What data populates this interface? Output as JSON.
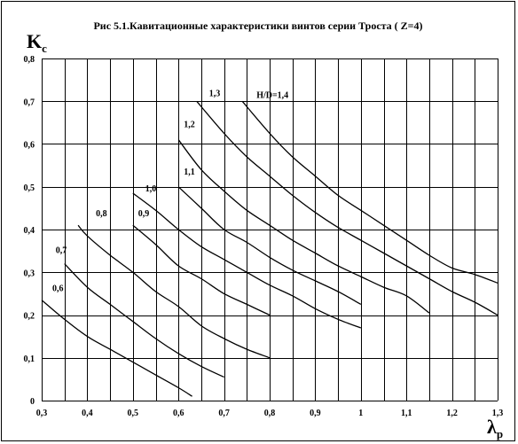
{
  "chart_data": {
    "type": "line",
    "title": "Рис 5.1.Кавитационные характеристики винтов серии Троста ( Z=4)",
    "ylabel": {
      "main": "K",
      "sub": "c"
    },
    "xlabel": {
      "main": "λ",
      "sub": "p"
    },
    "xlim": [
      0.3,
      1.3
    ],
    "ylim": [
      0,
      0.8
    ],
    "xticks": [
      "0,3",
      "0,4",
      "0,5",
      "0,6",
      "0,7",
      "0,8",
      "0,9",
      "1",
      "1,1",
      "1,2",
      "1,3"
    ],
    "yticks": [
      "0",
      "0,1",
      "0,2",
      "0,3",
      "0,4",
      "0,5",
      "0,6",
      "0,7",
      "0,8"
    ],
    "grid": true,
    "series": [
      {
        "name": "0,6",
        "points": [
          [
            0.3,
            0.235
          ],
          [
            0.35,
            0.19
          ],
          [
            0.4,
            0.15
          ],
          [
            0.45,
            0.12
          ],
          [
            0.5,
            0.09
          ],
          [
            0.55,
            0.06
          ],
          [
            0.6,
            0.03
          ],
          [
            0.63,
            0.01
          ]
        ]
      },
      {
        "name": "0,7",
        "points": [
          [
            0.35,
            0.32
          ],
          [
            0.4,
            0.265
          ],
          [
            0.45,
            0.225
          ],
          [
            0.5,
            0.185
          ],
          [
            0.55,
            0.145
          ],
          [
            0.6,
            0.11
          ],
          [
            0.65,
            0.08
          ],
          [
            0.7,
            0.055
          ]
        ]
      },
      {
        "name": "0,8",
        "points": [
          [
            0.38,
            0.41
          ],
          [
            0.4,
            0.385
          ],
          [
            0.45,
            0.34
          ],
          [
            0.5,
            0.3
          ],
          [
            0.55,
            0.255
          ],
          [
            0.6,
            0.22
          ],
          [
            0.65,
            0.175
          ],
          [
            0.7,
            0.145
          ],
          [
            0.75,
            0.12
          ],
          [
            0.8,
            0.1
          ]
        ]
      },
      {
        "name": "0,9",
        "points": [
          [
            0.5,
            0.41
          ],
          [
            0.55,
            0.365
          ],
          [
            0.6,
            0.315
          ],
          [
            0.65,
            0.285
          ],
          [
            0.7,
            0.25
          ],
          [
            0.75,
            0.225
          ],
          [
            0.8,
            0.2
          ]
        ]
      },
      {
        "name": "1,0",
        "points": [
          [
            0.5,
            0.485
          ],
          [
            0.55,
            0.445
          ],
          [
            0.6,
            0.4
          ],
          [
            0.65,
            0.36
          ],
          [
            0.7,
            0.33
          ],
          [
            0.75,
            0.3
          ],
          [
            0.8,
            0.27
          ],
          [
            0.85,
            0.245
          ],
          [
            0.9,
            0.215
          ],
          [
            0.95,
            0.19
          ],
          [
            1.0,
            0.17
          ]
        ]
      },
      {
        "name": "1,1",
        "points": [
          [
            0.6,
            0.5
          ],
          [
            0.65,
            0.45
          ],
          [
            0.7,
            0.4
          ],
          [
            0.75,
            0.37
          ],
          [
            0.8,
            0.335
          ],
          [
            0.85,
            0.305
          ],
          [
            0.9,
            0.28
          ],
          [
            0.95,
            0.255
          ],
          [
            1.0,
            0.225
          ]
        ]
      },
      {
        "name": "1,2",
        "points": [
          [
            0.6,
            0.61
          ],
          [
            0.65,
            0.54
          ],
          [
            0.7,
            0.49
          ],
          [
            0.75,
            0.445
          ],
          [
            0.8,
            0.41
          ],
          [
            0.85,
            0.375
          ],
          [
            0.9,
            0.345
          ],
          [
            0.95,
            0.315
          ],
          [
            1.0,
            0.29
          ],
          [
            1.05,
            0.265
          ],
          [
            1.1,
            0.245
          ],
          [
            1.15,
            0.205
          ]
        ]
      },
      {
        "name": "1,3",
        "points": [
          [
            0.64,
            0.7
          ],
          [
            0.7,
            0.625
          ],
          [
            0.75,
            0.57
          ],
          [
            0.8,
            0.525
          ],
          [
            0.85,
            0.48
          ],
          [
            0.9,
            0.44
          ],
          [
            0.95,
            0.405
          ],
          [
            1.0,
            0.375
          ],
          [
            1.05,
            0.345
          ],
          [
            1.1,
            0.315
          ],
          [
            1.15,
            0.285
          ],
          [
            1.2,
            0.255
          ],
          [
            1.25,
            0.23
          ],
          [
            1.3,
            0.2
          ]
        ]
      },
      {
        "name": "H/D=1,4",
        "points": [
          [
            0.74,
            0.7
          ],
          [
            0.8,
            0.625
          ],
          [
            0.85,
            0.57
          ],
          [
            0.9,
            0.525
          ],
          [
            0.95,
            0.48
          ],
          [
            1.0,
            0.445
          ],
          [
            1.05,
            0.41
          ],
          [
            1.1,
            0.375
          ],
          [
            1.15,
            0.34
          ],
          [
            1.2,
            0.31
          ],
          [
            1.25,
            0.295
          ],
          [
            1.3,
            0.275
          ]
        ]
      }
    ]
  }
}
